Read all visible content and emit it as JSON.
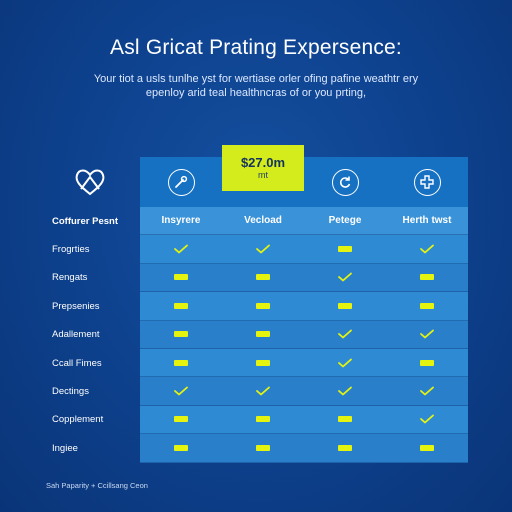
{
  "header": {
    "title": "Asl Gricat Prating Expersence:",
    "subtitle": "Your tiot a usls tunlhe yst for wertiase orler ofing pafine weathtr ery epenloy arid teal healthncras of or you prting,"
  },
  "plans": [
    {
      "icon": "wrench-icon",
      "label": "Insyrere",
      "highlight": false
    },
    {
      "icon": "",
      "label": "Vecload",
      "highlight": true,
      "price": "$27.0m",
      "price_sub": "mt"
    },
    {
      "icon": "refresh-icon",
      "label": "Petege",
      "highlight": false
    },
    {
      "icon": "medical-cross-icon",
      "label": "Herth twst",
      "highlight": false
    }
  ],
  "row_header_label": "Coffurer Pesnt",
  "rows": [
    {
      "label": "Frogrties",
      "values": [
        "check",
        "check",
        "dash",
        "check"
      ]
    },
    {
      "label": "Rengats",
      "values": [
        "dash",
        "dash",
        "check",
        "dash"
      ]
    },
    {
      "label": "Prepsenies",
      "values": [
        "dash",
        "dash",
        "dash",
        "dash"
      ]
    },
    {
      "label": "Adallement",
      "values": [
        "dash",
        "dash",
        "check",
        "check"
      ]
    },
    {
      "label": "Ccall Fimes",
      "values": [
        "dash",
        "dash",
        "check",
        "dash"
      ]
    },
    {
      "label": "Dectings",
      "values": [
        "check",
        "check",
        "check",
        "check"
      ]
    },
    {
      "label": "Copplement",
      "values": [
        "dash",
        "dash",
        "dash",
        "check"
      ]
    },
    {
      "label": "Ingiee",
      "values": [
        "dash",
        "dash",
        "dash",
        "dash"
      ]
    }
  ],
  "footer": "Sah Paparity + Ccillsang Ceon",
  "colors": {
    "background": "#0e4390",
    "header_cell": "#1671c2",
    "highlight": "#d4ec1b",
    "cell": "#2f8ad4",
    "mark": "#e4f40e"
  }
}
